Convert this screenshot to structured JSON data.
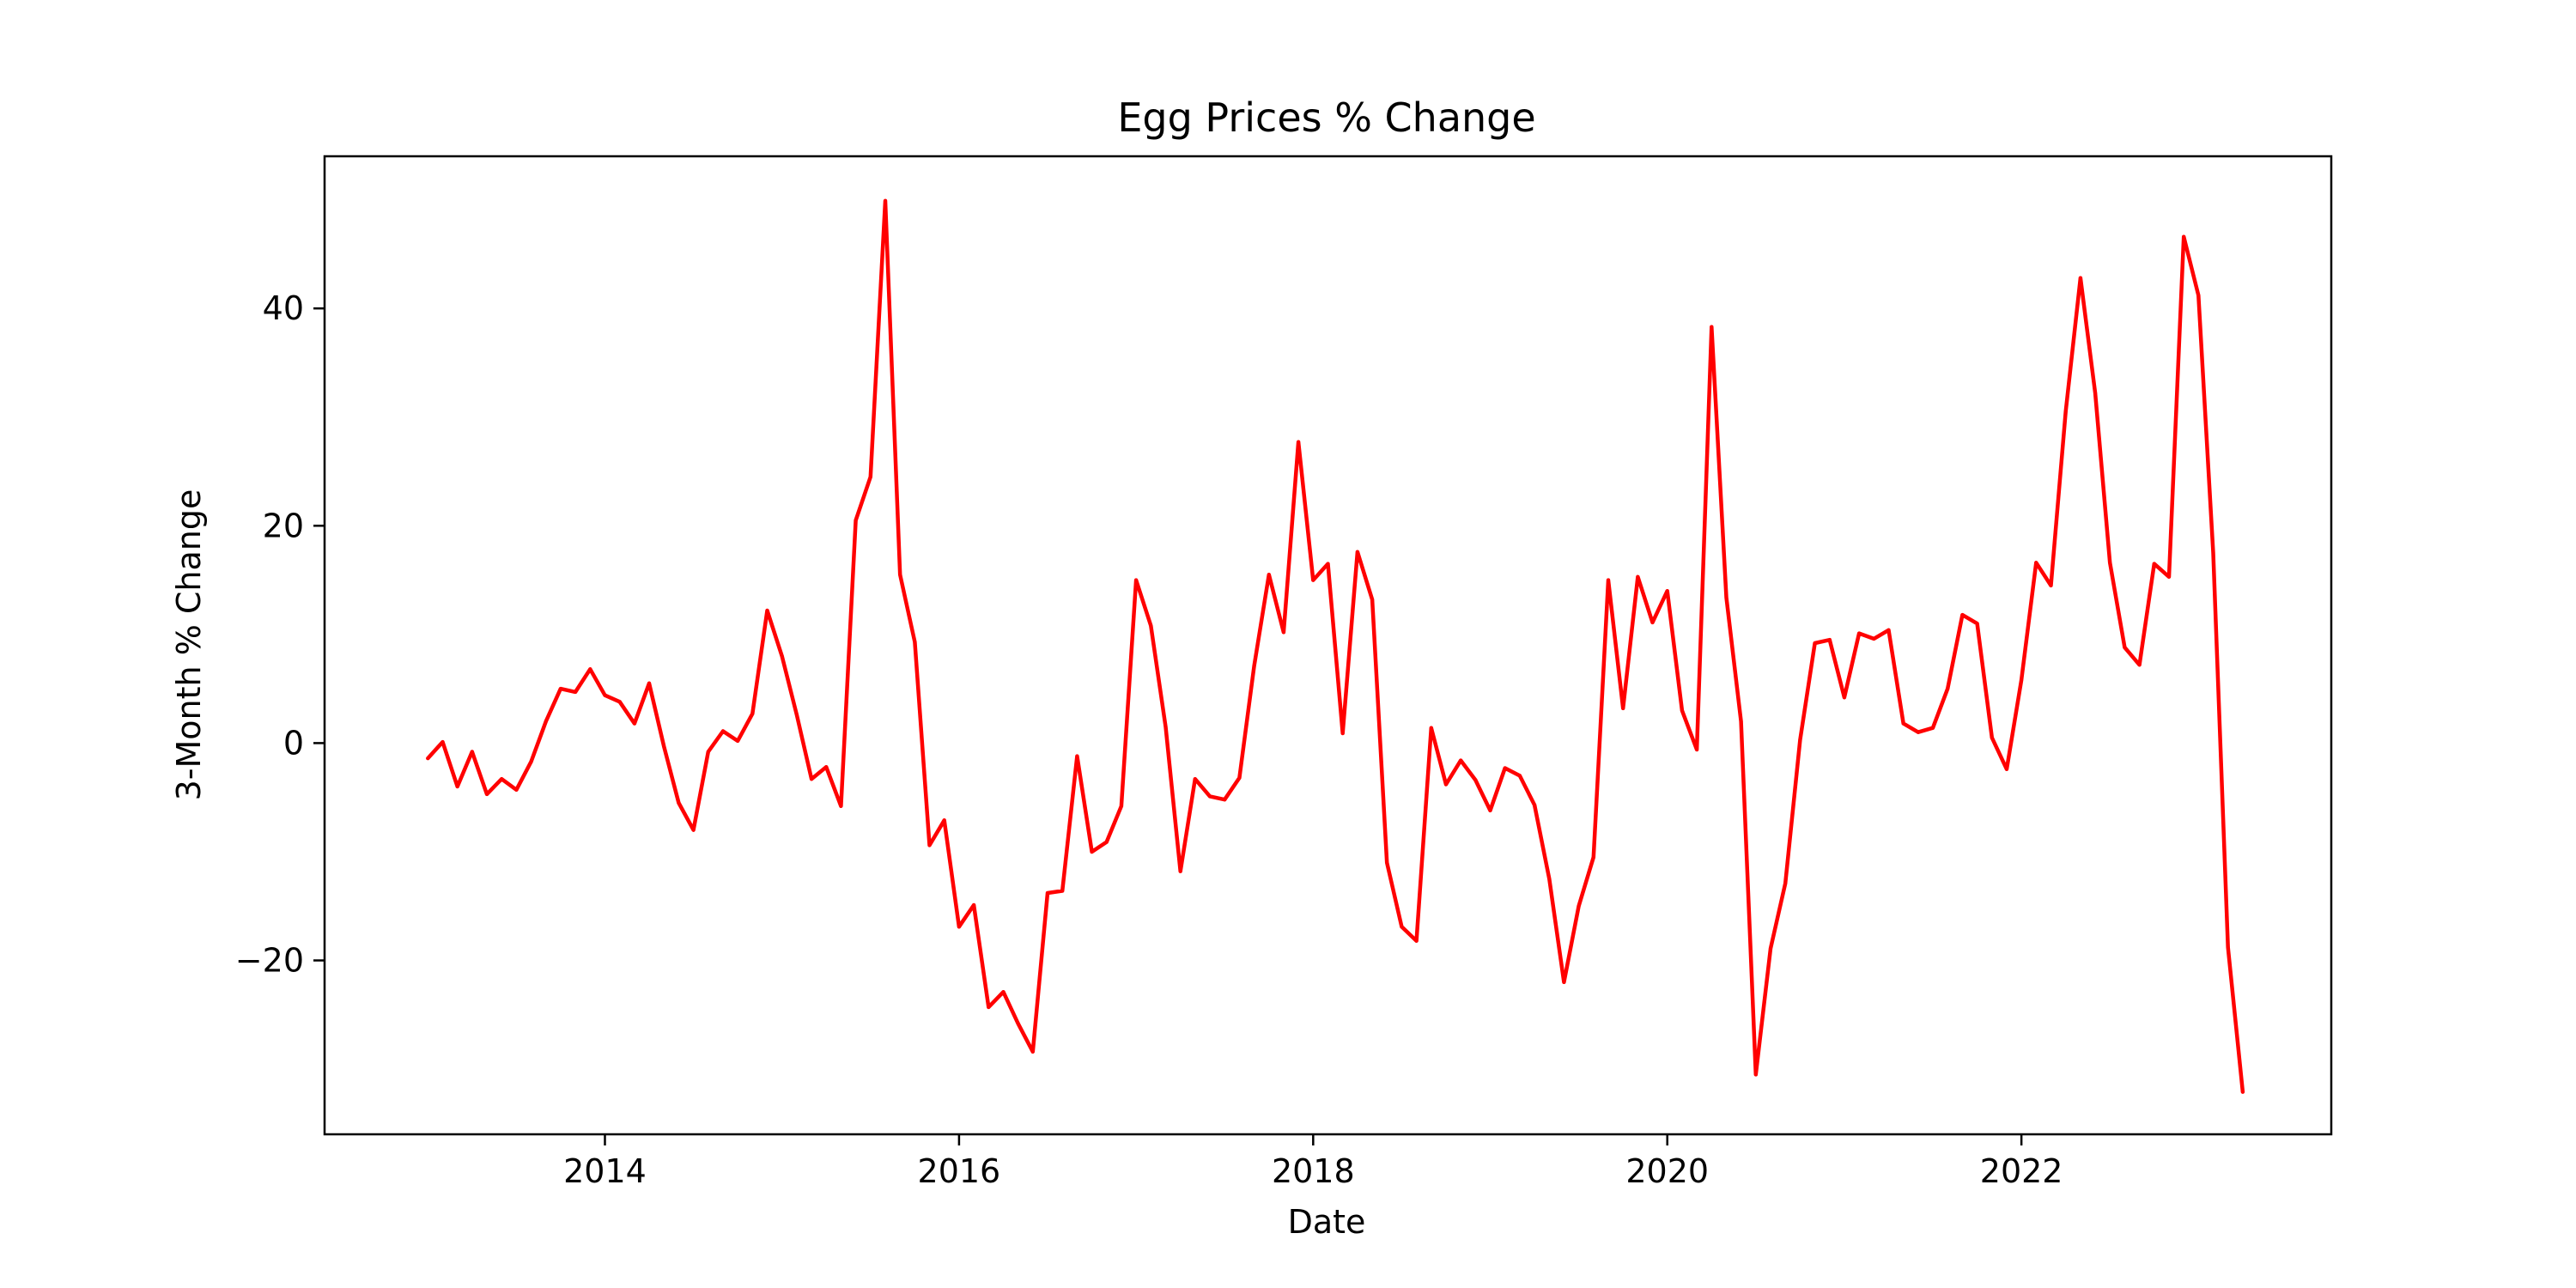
{
  "chart_data": {
    "type": "line",
    "title": "Egg Prices % Change",
    "xlabel": "Date",
    "ylabel": "3-Month % Change",
    "xlim": [
      "2012-06",
      "2023-10"
    ],
    "ylim": [
      -36,
      54
    ],
    "x_ticks": [
      "2014",
      "2016",
      "2018",
      "2020",
      "2022"
    ],
    "y_ticks": [
      -20,
      0,
      20,
      40
    ],
    "y_tick_labels": [
      "−20",
      "0",
      "20",
      "40"
    ],
    "grid": false,
    "legend": "none",
    "line_color": "#ff0000",
    "series": [
      {
        "x": [
          "2013-01",
          "2013-02",
          "2013-03",
          "2013-04",
          "2013-05",
          "2013-06",
          "2013-07",
          "2013-08",
          "2013-09",
          "2013-10",
          "2013-11",
          "2013-12",
          "2014-01",
          "2014-02",
          "2014-03",
          "2014-04",
          "2014-05",
          "2014-06",
          "2014-07",
          "2014-08",
          "2014-09",
          "2014-10",
          "2014-11",
          "2014-12",
          "2015-01",
          "2015-02",
          "2015-03",
          "2015-04",
          "2015-05",
          "2015-06",
          "2015-07",
          "2015-08",
          "2015-09",
          "2015-10",
          "2015-11",
          "2015-12",
          "2016-01",
          "2016-02",
          "2016-03",
          "2016-04",
          "2016-05",
          "2016-06",
          "2016-07",
          "2016-08",
          "2016-09",
          "2016-10",
          "2016-11",
          "2016-12",
          "2017-01",
          "2017-02",
          "2017-03",
          "2017-04",
          "2017-05",
          "2017-06",
          "2017-07",
          "2017-08",
          "2017-09",
          "2017-10",
          "2017-11",
          "2017-12",
          "2018-01",
          "2018-02",
          "2018-03",
          "2018-04",
          "2018-05",
          "2018-06",
          "2018-07",
          "2018-08",
          "2018-09",
          "2018-10",
          "2018-11",
          "2018-12",
          "2019-01",
          "2019-02",
          "2019-03",
          "2019-04",
          "2019-05",
          "2019-06",
          "2019-07",
          "2019-08",
          "2019-09",
          "2019-10",
          "2019-11",
          "2019-12",
          "2020-01",
          "2020-02",
          "2020-03",
          "2020-04",
          "2020-05",
          "2020-06",
          "2020-07",
          "2020-08",
          "2020-09",
          "2020-10",
          "2020-11",
          "2020-12",
          "2021-01",
          "2021-02",
          "2021-03",
          "2021-04",
          "2021-05",
          "2021-06",
          "2021-07",
          "2021-08",
          "2021-09",
          "2021-10",
          "2021-11",
          "2021-12",
          "2022-01",
          "2022-02",
          "2022-03",
          "2022-04",
          "2022-05",
          "2022-06",
          "2022-07",
          "2022-08",
          "2022-09",
          "2022-10",
          "2022-11",
          "2022-12",
          "2023-01",
          "2023-02",
          "2023-03",
          "2023-04"
        ],
        "y": [
          -1.4,
          0.1,
          -4.0,
          -0.8,
          -4.7,
          -3.3,
          -4.3,
          -1.7,
          2.0,
          5.0,
          4.7,
          6.8,
          4.4,
          3.8,
          1.8,
          5.5,
          -0.3,
          -5.5,
          -8.0,
          -0.8,
          1.1,
          0.2,
          2.7,
          12.2,
          8.0,
          2.6,
          -3.3,
          -2.2,
          -5.8,
          20.5,
          24.5,
          49.9,
          15.5,
          9.3,
          -9.4,
          -7.1,
          -16.9,
          -14.9,
          -24.3,
          -22.9,
          -25.8,
          -28.4,
          -13.8,
          -13.6,
          -1.2,
          -10.0,
          -9.1,
          -5.8,
          15.0,
          10.8,
          1.5,
          -11.8,
          -3.3,
          -4.9,
          -5.2,
          -3.2,
          7.1,
          15.5,
          10.2,
          27.7,
          15.0,
          16.5,
          0.9,
          17.6,
          13.2,
          -11.0,
          -16.9,
          -18.2,
          1.4,
          -3.8,
          -1.6,
          -3.4,
          -6.2,
          -2.3,
          -3.0,
          -5.7,
          -12.5,
          -22.0,
          -15.0,
          -10.5,
          15.0,
          3.2,
          15.3,
          11.1,
          14.0,
          3.0,
          -0.6,
          38.3,
          13.4,
          2.0,
          -30.5,
          -18.9,
          -12.9,
          0.3,
          9.2,
          9.5,
          4.2,
          10.1,
          9.6,
          10.4,
          1.8,
          1.0,
          1.4,
          5.0,
          11.8,
          11.0,
          0.5,
          -2.4,
          5.8,
          16.6,
          14.5,
          30.5,
          42.8,
          32.2,
          16.6,
          8.8,
          7.2,
          16.5,
          15.3,
          46.6,
          41.2,
          17.5,
          -18.8,
          -32.1
        ]
      }
    ]
  }
}
